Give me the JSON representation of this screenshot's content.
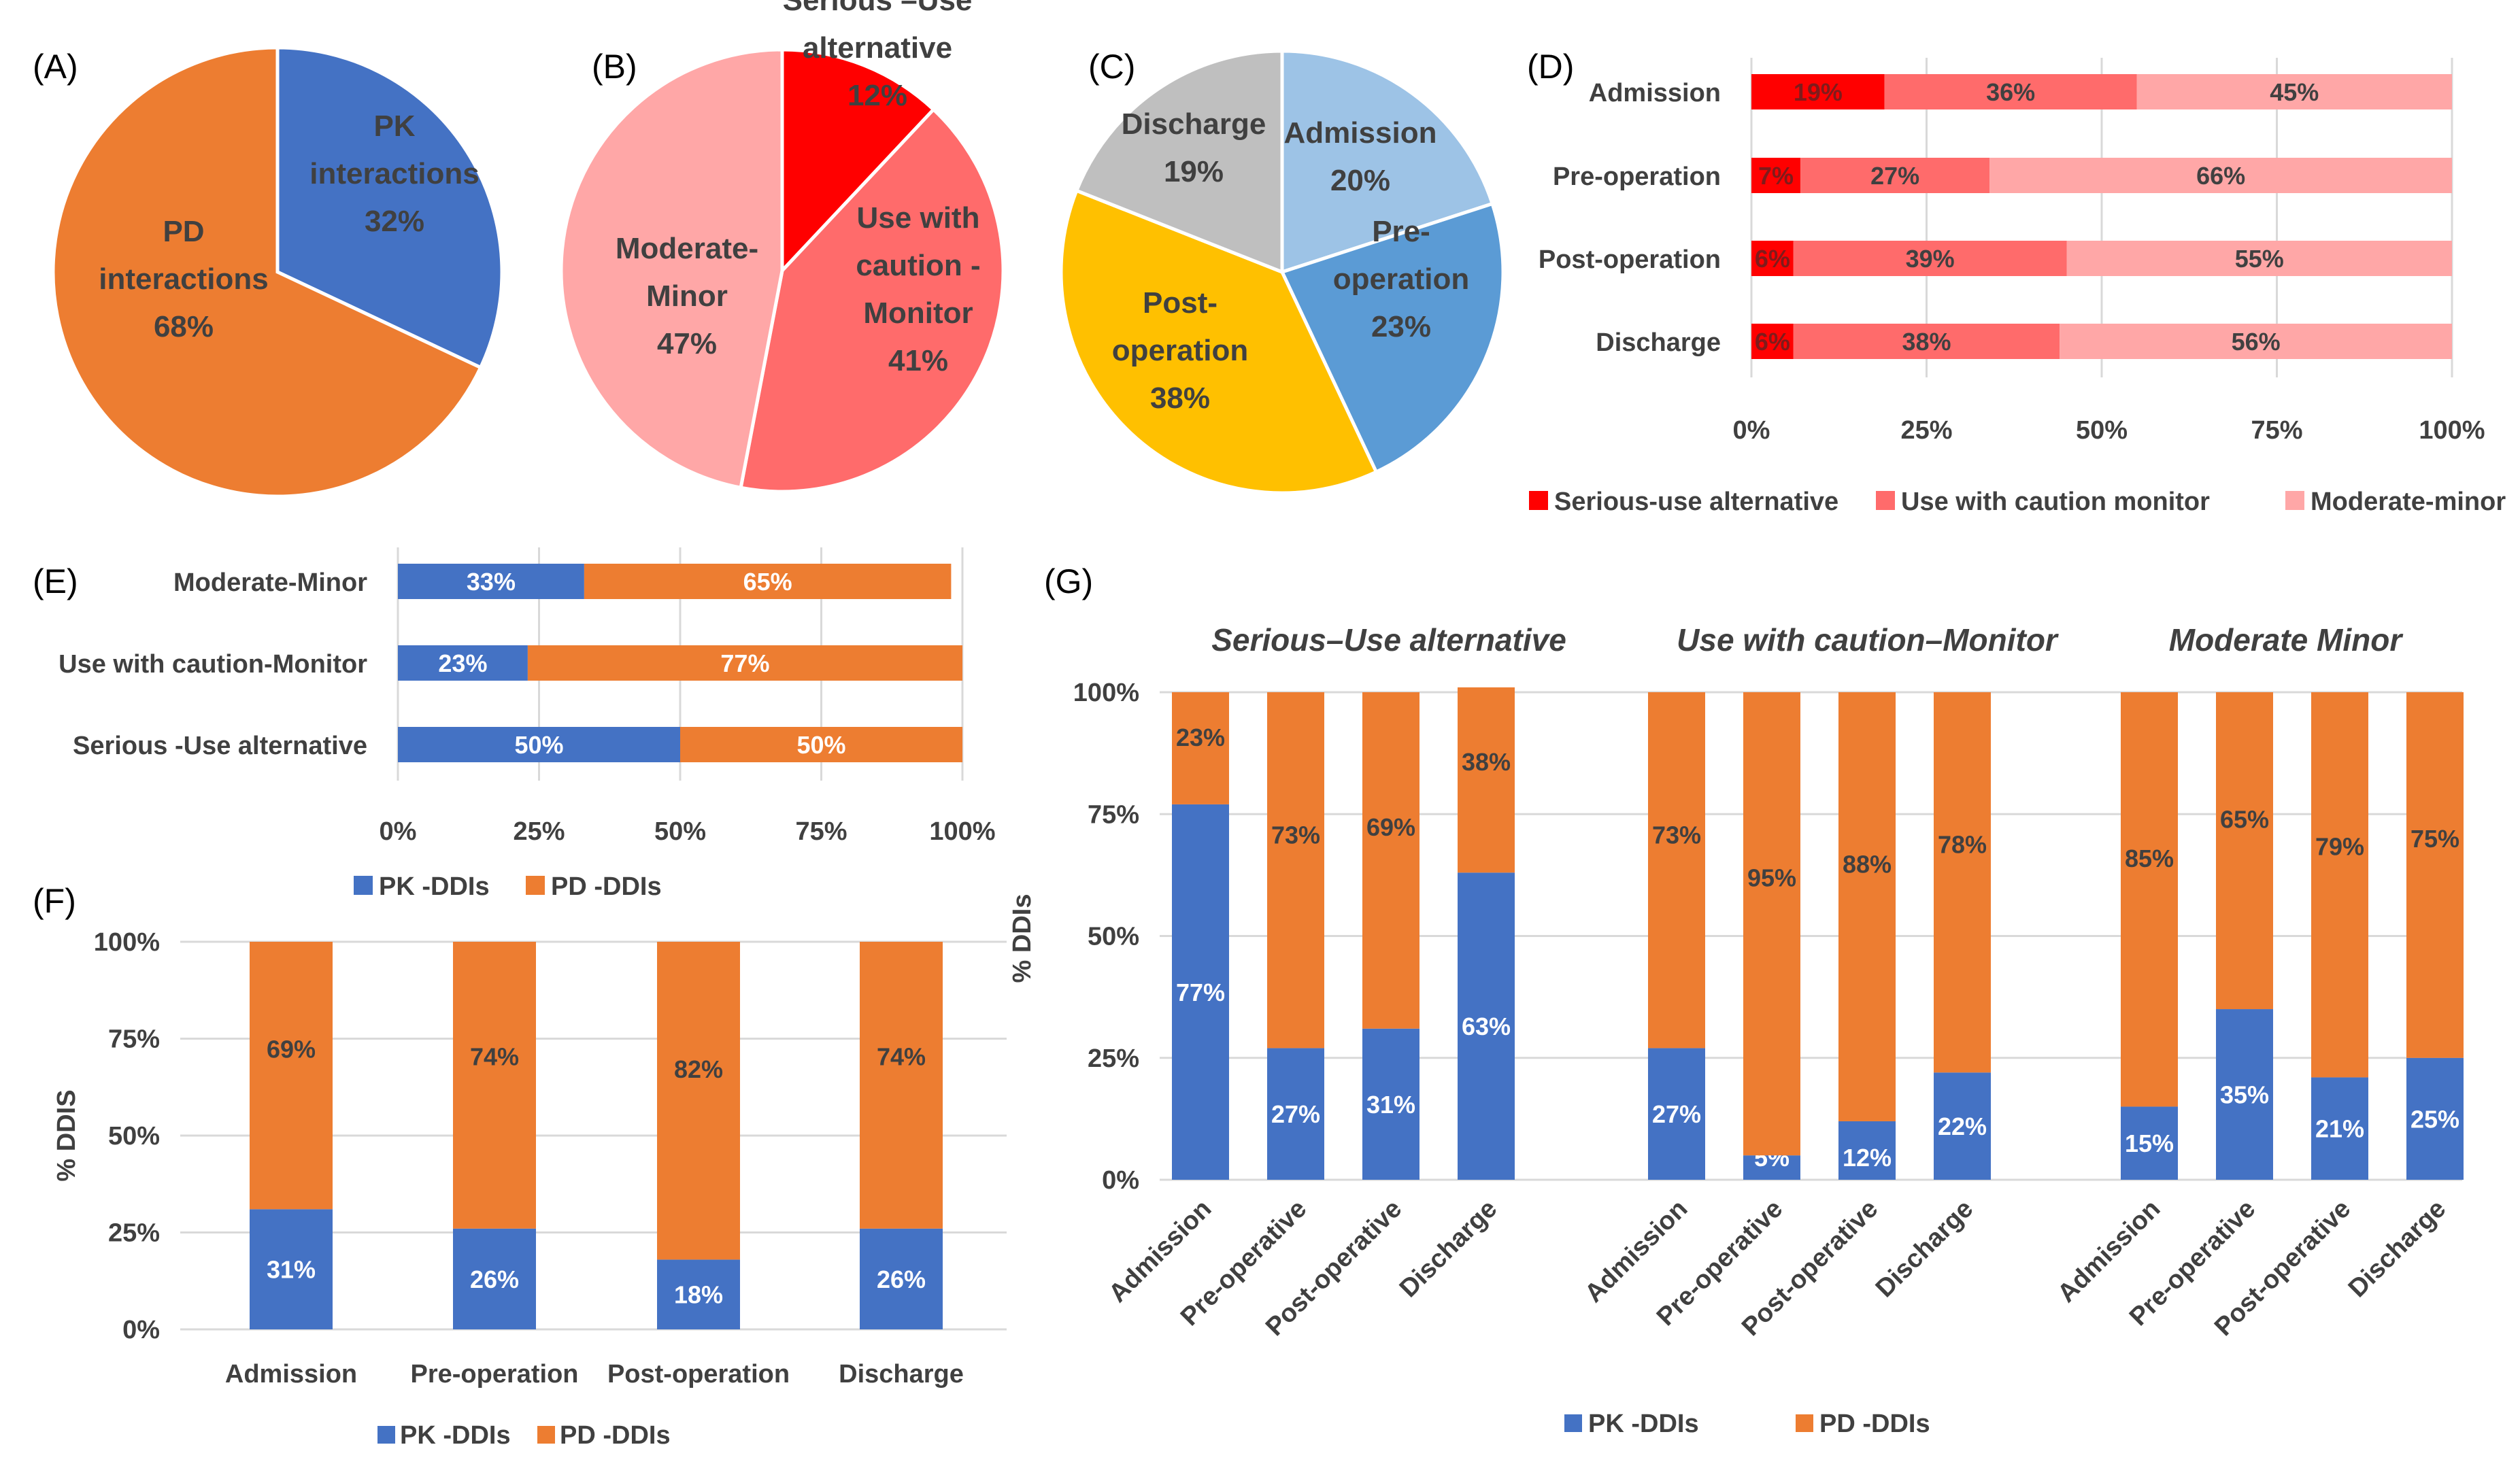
{
  "colors": {
    "pk": "#4472C4",
    "pd": "#ED7D31",
    "serious": "#FF0000",
    "caution": "#FF6B6B",
    "moderate": "#FFA7A7",
    "admission": "#9DC3E6",
    "preop": "#5B9BD5",
    "postop": "#FFC000",
    "discharge": "#BFBFBF",
    "grid": "#D9D9D9",
    "text": "#404040"
  },
  "chart_data": [
    {
      "panel": "(A)",
      "type": "pie",
      "slices": [
        {
          "name": "PK interactions",
          "label_lines": [
            "PK",
            "interactions",
            "32%"
          ],
          "value": 32,
          "color": "pk"
        },
        {
          "name": "PD interactions",
          "label_lines": [
            "PD",
            "interactions",
            "68%"
          ],
          "value": 68,
          "color": "pd"
        }
      ]
    },
    {
      "panel": "(B)",
      "type": "pie",
      "slices": [
        {
          "name": "Serious –Use alternative",
          "label_lines": [
            "Serious –Use",
            "alternative",
            "12%"
          ],
          "value": 12,
          "color": "serious"
        },
        {
          "name": "Use with caution - Monitor",
          "label_lines": [
            "Use with",
            "caution -",
            "Monitor",
            "41%"
          ],
          "value": 41,
          "color": "caution"
        },
        {
          "name": "Moderate-Minor",
          "label_lines": [
            "Moderate-",
            "Minor",
            "47%"
          ],
          "value": 47,
          "color": "moderate"
        }
      ]
    },
    {
      "panel": "(C)",
      "type": "pie",
      "slices": [
        {
          "name": "Admission",
          "label_lines": [
            "Admission",
            "20%"
          ],
          "value": 20,
          "color": "admission"
        },
        {
          "name": "Pre-operation",
          "label_lines": [
            "Pre-",
            "operation",
            "23%"
          ],
          "value": 23,
          "color": "preop"
        },
        {
          "name": "Post-operation",
          "label_lines": [
            "Post-",
            "operation",
            "38%"
          ],
          "value": 38,
          "color": "postop"
        },
        {
          "name": "Discharge",
          "label_lines": [
            "Discharge",
            "19%"
          ],
          "value": 19,
          "color": "discharge"
        }
      ]
    },
    {
      "panel": "(D)",
      "type": "bar",
      "orientation": "horizontal",
      "stacked": true,
      "categories": [
        "Admission",
        "Pre-operation",
        "Post-operation",
        "Discharge"
      ],
      "series": [
        {
          "name": "Serious-use alternative",
          "values": [
            19,
            7,
            6,
            6
          ],
          "labels": [
            "19%",
            "7%",
            "6%",
            "6%"
          ],
          "color": "serious"
        },
        {
          "name": "Use with caution monitor",
          "values": [
            36,
            27,
            39,
            38
          ],
          "labels": [
            "36%",
            "27%",
            "39%",
            "38%"
          ],
          "color": "caution"
        },
        {
          "name": "Moderate-minor",
          "values": [
            45,
            66,
            55,
            56
          ],
          "labels": [
            "45%",
            "66%",
            "55%",
            "56%"
          ],
          "color": "moderate"
        }
      ],
      "xticks": [
        "0%",
        "25%",
        "50%",
        "75%",
        "100%"
      ],
      "xlim": [
        0,
        100
      ]
    },
    {
      "panel": "(E)",
      "type": "bar",
      "orientation": "horizontal",
      "stacked": true,
      "categories": [
        "Moderate-Minor",
        "Use with caution-Monitor",
        "Serious -Use alternative"
      ],
      "series": [
        {
          "name": "PK -DDIs",
          "values": [
            33,
            23,
            50
          ],
          "labels": [
            "33%",
            "23%",
            "50%"
          ],
          "color": "pk"
        },
        {
          "name": "PD -DDIs",
          "values": [
            65,
            77,
            50
          ],
          "labels": [
            "65%",
            "77%",
            "50%"
          ],
          "color": "pd"
        }
      ],
      "xticks": [
        "0%",
        "25%",
        "50%",
        "75%",
        "100%"
      ],
      "xlim": [
        0,
        100
      ]
    },
    {
      "panel": "(F)",
      "type": "bar",
      "stacked": true,
      "categories": [
        "Admission",
        "Pre-operation",
        "Post-operation",
        "Discharge"
      ],
      "series": [
        {
          "name": "PK -DDIs",
          "values": [
            31,
            26,
            18,
            26
          ],
          "labels": [
            "31%",
            "26%",
            "18%",
            "26%"
          ],
          "color": "pk"
        },
        {
          "name": "PD -DDIs",
          "values": [
            69,
            74,
            82,
            74
          ],
          "labels": [
            "69%",
            "74%",
            "82%",
            "74%"
          ],
          "color": "pd"
        }
      ],
      "yticks": [
        "0%",
        "25%",
        "50%",
        "75%",
        "100%"
      ],
      "ylabel": "% DDIS",
      "ylim": [
        0,
        100
      ]
    },
    {
      "panel": "(G)",
      "type": "bar",
      "stacked": true,
      "groups": [
        "Serious–Use alternative",
        "Use with caution–Monitor",
        "Moderate Minor"
      ],
      "categories": [
        "Admission",
        "Pre-operative",
        "Post-operative",
        "Discharge"
      ],
      "series": [
        {
          "name": "PK -DDIs",
          "color": "pk",
          "values": [
            [
              77,
              27,
              31,
              63
            ],
            [
              27,
              5,
              12,
              22
            ],
            [
              15,
              35,
              21,
              25
            ]
          ],
          "labels": [
            [
              "77%",
              "27%",
              "31%",
              "63%"
            ],
            [
              "27%",
              "5%",
              "12%",
              "22%"
            ],
            [
              "15%",
              "35%",
              "21%",
              "25%"
            ]
          ]
        },
        {
          "name": "PD -DDIs",
          "color": "pd",
          "values": [
            [
              23,
              73,
              69,
              38
            ],
            [
              73,
              95,
              88,
              78
            ],
            [
              85,
              65,
              79,
              75
            ]
          ],
          "labels": [
            [
              "23%",
              "73%",
              "69%",
              "38%"
            ],
            [
              "73%",
              "95%",
              "88%",
              "78%"
            ],
            [
              "85%",
              "65%",
              "79%",
              "75%"
            ]
          ]
        }
      ],
      "yticks": [
        "0%",
        "25%",
        "50%",
        "75%",
        "100%"
      ],
      "ylabel": "% DDIs",
      "ylim": [
        0,
        100
      ]
    }
  ]
}
